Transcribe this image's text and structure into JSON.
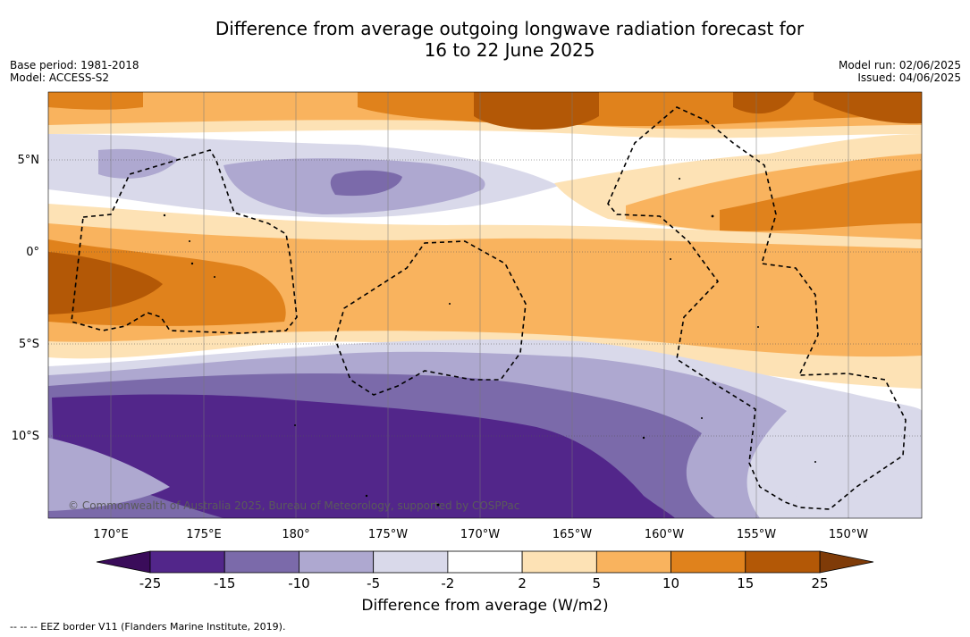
{
  "title_line1": "Difference from average outgoing longwave radiation forecast for",
  "title_line2": "16 to 22 June 2025",
  "base_period": "Base period: 1981-2018",
  "model": "Model: ACCESS-S2",
  "model_run": "Model run: 02/06/2025",
  "issued": "Issued: 04/06/2025",
  "copyright": "© Commonwealth of Australia 2025, Bureau of Meteorology, supported by COSPPac",
  "lat_labels": [
    "5°N",
    "0°",
    "5°S",
    "10°S"
  ],
  "lon_labels": [
    "170°E",
    "175°E",
    "180°",
    "175°W",
    "170°W",
    "165°W",
    "160°W",
    "155°W",
    "150°W"
  ],
  "colorbar": {
    "title": "Difference from average (W/m2)",
    "ticks": [
      "-25",
      "-15",
      "-10",
      "-5",
      "-2",
      "2",
      "5",
      "10",
      "15",
      "25"
    ],
    "colors": [
      "#3a0c5a",
      "#52268a",
      "#7b6aaa",
      "#aea8d0",
      "#d9d9ea",
      "#ffffff",
      "#fde2b5",
      "#f9b35e",
      "#e0821c",
      "#b35806",
      "#7f3b08"
    ]
  },
  "footnote": "-- -- -- EEZ border V11 (Flanders Marine Institute, 2019)."
}
